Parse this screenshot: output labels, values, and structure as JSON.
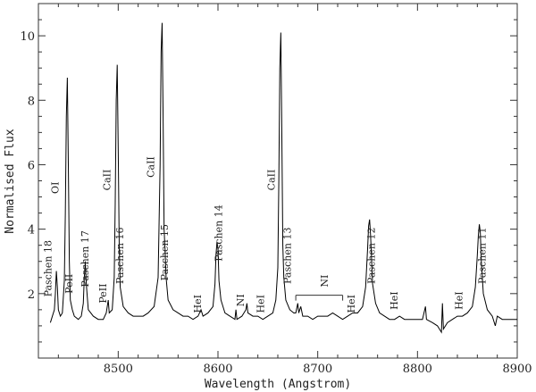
{
  "chart_data": {
    "type": "line",
    "title": "",
    "xlabel": "Wavelength (Angstrom)",
    "ylabel": "Normalised Flux",
    "xlim": [
      8420,
      8900
    ],
    "ylim": [
      0,
      11
    ],
    "grid": false,
    "x_ticks": [
      8500,
      8600,
      8700,
      8800,
      8900
    ],
    "y_ticks": [
      2,
      4,
      6,
      8,
      10
    ],
    "series": [
      {
        "color": "#000000",
        "points": [
          [
            8432,
            1.1
          ],
          [
            8434,
            1.3
          ],
          [
            8436,
            1.5
          ],
          [
            8437,
            2.0
          ],
          [
            8438,
            2.7
          ],
          [
            8439,
            2.2
          ],
          [
            8440,
            1.5
          ],
          [
            8442,
            1.3
          ],
          [
            8444,
            1.4
          ],
          [
            8446,
            2.4
          ],
          [
            8447,
            4.5
          ],
          [
            8448,
            7.5
          ],
          [
            8449,
            8.7
          ],
          [
            8450,
            6.0
          ],
          [
            8451,
            3.0
          ],
          [
            8452,
            1.8
          ],
          [
            8454,
            1.5
          ],
          [
            8456,
            1.3
          ],
          [
            8460,
            1.2
          ],
          [
            8463,
            1.3
          ],
          [
            8465,
            1.7
          ],
          [
            8466,
            2.5
          ],
          [
            8467,
            3.0
          ],
          [
            8468,
            2.3
          ],
          [
            8470,
            1.5
          ],
          [
            8475,
            1.3
          ],
          [
            8480,
            1.2
          ],
          [
            8485,
            1.2
          ],
          [
            8488,
            1.4
          ],
          [
            8490,
            1.8
          ],
          [
            8491,
            1.4
          ],
          [
            8494,
            1.5
          ],
          [
            8496,
            2.5
          ],
          [
            8497,
            4.8
          ],
          [
            8498,
            8.0
          ],
          [
            8499,
            9.1
          ],
          [
            8500,
            6.5
          ],
          [
            8501,
            3.5
          ],
          [
            8502,
            2.2
          ],
          [
            8505,
            1.6
          ],
          [
            8510,
            1.4
          ],
          [
            8515,
            1.3
          ],
          [
            8520,
            1.3
          ],
          [
            8525,
            1.3
          ],
          [
            8530,
            1.4
          ],
          [
            8536,
            1.6
          ],
          [
            8540,
            2.5
          ],
          [
            8542,
            6.0
          ],
          [
            8543,
            9.5
          ],
          [
            8544,
            10.4
          ],
          [
            8545,
            7.5
          ],
          [
            8546,
            4.0
          ],
          [
            8547,
            3.3
          ],
          [
            8548,
            2.5
          ],
          [
            8550,
            1.8
          ],
          [
            8555,
            1.5
          ],
          [
            8560,
            1.4
          ],
          [
            8565,
            1.3
          ],
          [
            8570,
            1.3
          ],
          [
            8575,
            1.2
          ],
          [
            8580,
            1.3
          ],
          [
            8583,
            1.5
          ],
          [
            8585,
            1.3
          ],
          [
            8590,
            1.4
          ],
          [
            8595,
            1.6
          ],
          [
            8597,
            2.3
          ],
          [
            8598,
            3.2
          ],
          [
            8599,
            3.6
          ],
          [
            8600,
            3.4
          ],
          [
            8601,
            2.4
          ],
          [
            8603,
            1.8
          ],
          [
            8607,
            1.4
          ],
          [
            8612,
            1.3
          ],
          [
            8617,
            1.2
          ],
          [
            8618,
            1.5
          ],
          [
            8619,
            1.2
          ],
          [
            8624,
            1.3
          ],
          [
            8628,
            1.5
          ],
          [
            8629,
            1.7
          ],
          [
            8630,
            1.4
          ],
          [
            8635,
            1.3
          ],
          [
            8640,
            1.3
          ],
          [
            8645,
            1.2
          ],
          [
            8650,
            1.3
          ],
          [
            8655,
            1.4
          ],
          [
            8658,
            1.8
          ],
          [
            8660,
            2.8
          ],
          [
            8661,
            5.5
          ],
          [
            8662,
            9.0
          ],
          [
            8663,
            10.1
          ],
          [
            8664,
            7.0
          ],
          [
            8665,
            3.5
          ],
          [
            8666,
            2.5
          ],
          [
            8668,
            1.8
          ],
          [
            8672,
            1.5
          ],
          [
            8676,
            1.4
          ],
          [
            8678,
            1.4
          ],
          [
            8680,
            1.7
          ],
          [
            8681,
            1.4
          ],
          [
            8683,
            1.6
          ],
          [
            8685,
            1.3
          ],
          [
            8690,
            1.3
          ],
          [
            8695,
            1.2
          ],
          [
            8700,
            1.3
          ],
          [
            8705,
            1.3
          ],
          [
            8710,
            1.3
          ],
          [
            8715,
            1.4
          ],
          [
            8720,
            1.3
          ],
          [
            8725,
            1.2
          ],
          [
            8730,
            1.3
          ],
          [
            8735,
            1.4
          ],
          [
            8740,
            1.4
          ],
          [
            8745,
            1.6
          ],
          [
            8748,
            2.2
          ],
          [
            8750,
            3.4
          ],
          [
            8751,
            4.1
          ],
          [
            8752,
            4.3
          ],
          [
            8753,
            3.8
          ],
          [
            8755,
            2.3
          ],
          [
            8758,
            1.7
          ],
          [
            8762,
            1.4
          ],
          [
            8767,
            1.3
          ],
          [
            8772,
            1.2
          ],
          [
            8777,
            1.2
          ],
          [
            8782,
            1.3
          ],
          [
            8787,
            1.2
          ],
          [
            8792,
            1.2
          ],
          [
            8797,
            1.2
          ],
          [
            8800,
            1.2
          ],
          [
            8805,
            1.2
          ],
          [
            8808,
            1.6
          ],
          [
            8809,
            1.2
          ],
          [
            8815,
            1.1
          ],
          [
            8820,
            1.0
          ],
          [
            8824,
            0.8
          ],
          [
            8825,
            1.7
          ],
          [
            8826,
            0.9
          ],
          [
            8830,
            1.1
          ],
          [
            8835,
            1.2
          ],
          [
            8840,
            1.3
          ],
          [
            8845,
            1.3
          ],
          [
            8850,
            1.4
          ],
          [
            8855,
            1.6
          ],
          [
            8858,
            2.2
          ],
          [
            8860,
            3.2
          ],
          [
            8861,
            3.8
          ],
          [
            8862,
            4.15
          ],
          [
            8863,
            3.9
          ],
          [
            8864,
            3.0
          ],
          [
            8866,
            2.0
          ],
          [
            8870,
            1.5
          ],
          [
            8875,
            1.3
          ],
          [
            8878,
            1.0
          ],
          [
            8880,
            1.3
          ],
          [
            8885,
            1.2
          ],
          [
            8890,
            1.2
          ],
          [
            8895,
            1.2
          ],
          [
            8900,
            1.2
          ]
        ]
      }
    ],
    "annotations": [
      {
        "text": "Paschen 18",
        "x": 8433,
        "y": 1.9,
        "rotate": true
      },
      {
        "text": "OI",
        "x": 8440,
        "y": 5.1,
        "rotate": true
      },
      {
        "text": "PeII",
        "x": 8454,
        "y": 2.0,
        "rotate": true
      },
      {
        "text": "Paschen 17",
        "x": 8470,
        "y": 2.2,
        "rotate": true
      },
      {
        "text": "PeII",
        "x": 8488,
        "y": 1.7,
        "rotate": true
      },
      {
        "text": "CaII",
        "x": 8492,
        "y": 5.2,
        "rotate": true
      },
      {
        "text": "Paschen 16",
        "x": 8505,
        "y": 2.3,
        "rotate": true
      },
      {
        "text": "CaII",
        "x": 8536,
        "y": 5.6,
        "rotate": true
      },
      {
        "text": "Paschen 15",
        "x": 8550,
        "y": 2.4,
        "rotate": true
      },
      {
        "text": "HeI",
        "x": 8583,
        "y": 1.4,
        "rotate": true
      },
      {
        "text": "Paschen 14",
        "x": 8604,
        "y": 3.0,
        "rotate": true
      },
      {
        "text": "NI",
        "x": 8626,
        "y": 1.6,
        "rotate": true
      },
      {
        "text": "HeI",
        "x": 8646,
        "y": 1.4,
        "rotate": true
      },
      {
        "text": "CaII",
        "x": 8657,
        "y": 5.2,
        "rotate": true
      },
      {
        "text": "Paschen 13",
        "x": 8673,
        "y": 2.3,
        "rotate": true
      },
      {
        "text": "NI",
        "x": 8710,
        "y": 2.2,
        "rotate": true
      },
      {
        "text": "HeI",
        "x": 8737,
        "y": 1.4,
        "rotate": true
      },
      {
        "text": "Paschen 12",
        "x": 8757,
        "y": 2.3,
        "rotate": true
      },
      {
        "text": "HeI",
        "x": 8780,
        "y": 1.5,
        "rotate": true
      },
      {
        "text": "HeI",
        "x": 8845,
        "y": 1.5,
        "rotate": true
      },
      {
        "text": "Paschen 11",
        "x": 8868,
        "y": 2.3,
        "rotate": true
      }
    ],
    "markers": [
      {
        "x1": 8678,
        "x2": 8725,
        "y": 1.95
      }
    ]
  }
}
